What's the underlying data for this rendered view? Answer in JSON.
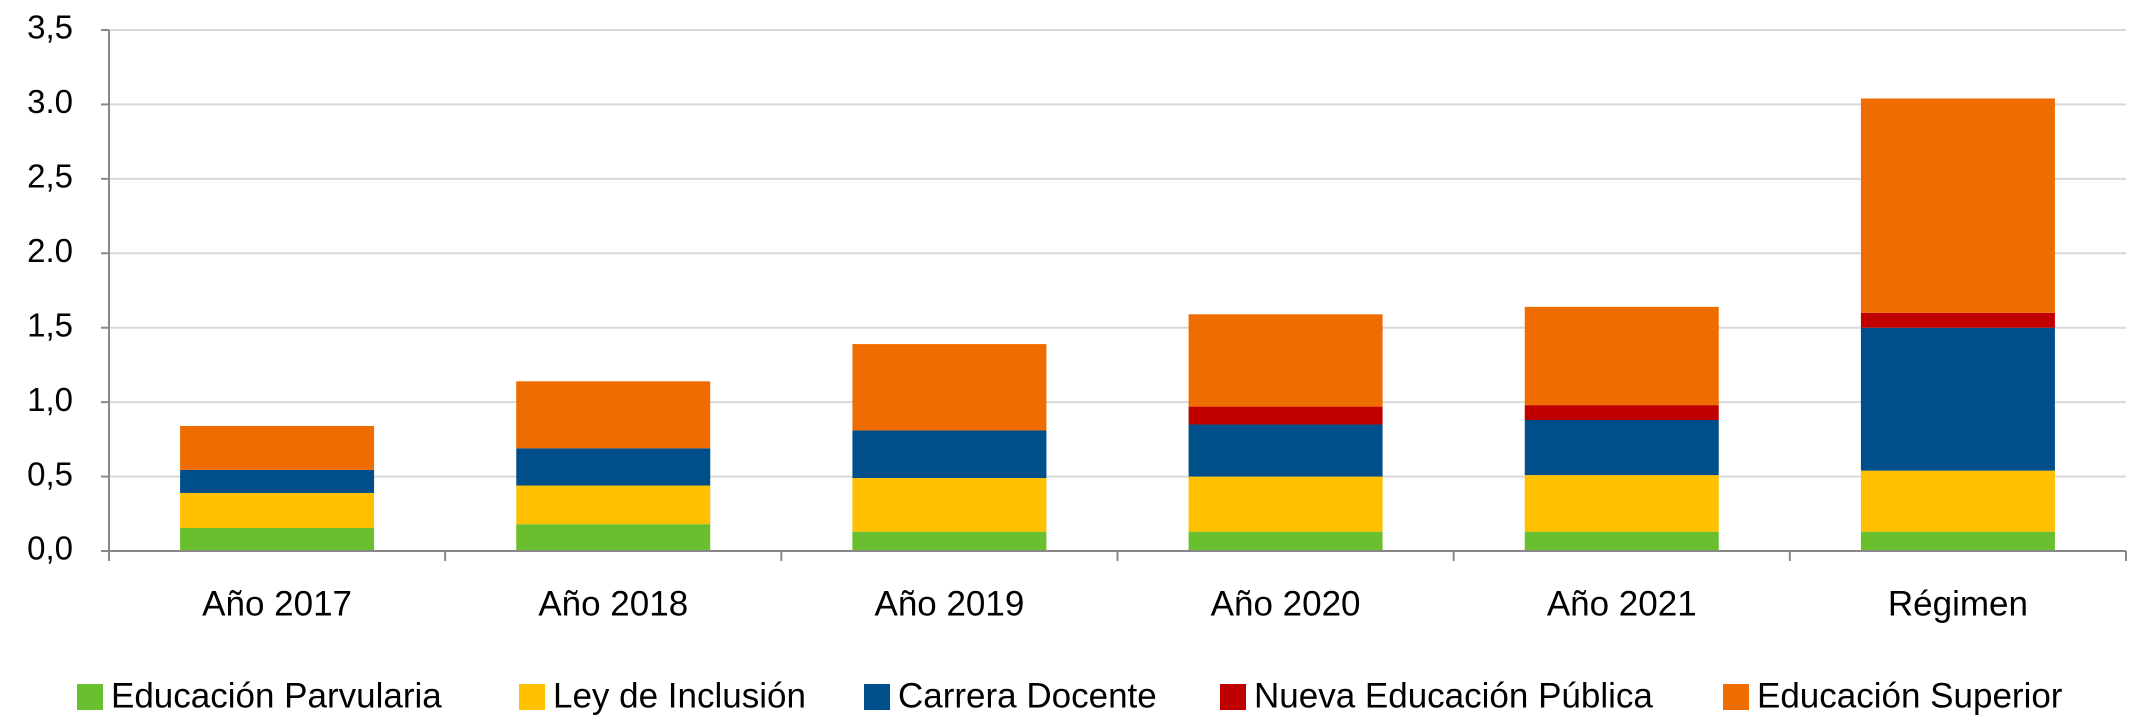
{
  "chart_data": {
    "type": "stacked_bar",
    "categories": [
      "Año 2017",
      "Año 2018",
      "Año 2019",
      "Año 2020",
      "Año 2021",
      "Régimen"
    ],
    "series": [
      {
        "name": "Educación Parvularia",
        "color": "#6abf2e",
        "values": [
          0.155,
          0.18,
          0.13,
          0.13,
          0.13,
          0.13
        ]
      },
      {
        "name": "Ley de Inclusión",
        "color": "#ffc000",
        "values": [
          0.235,
          0.26,
          0.36,
          0.37,
          0.38,
          0.41
        ]
      },
      {
        "name": "Carrera Docente",
        "color": "#004e8a",
        "values": [
          0.155,
          0.25,
          0.32,
          0.35,
          0.37,
          0.96
        ]
      },
      {
        "name": "Nueva Educación Pública",
        "color": "#c00000",
        "values": [
          0,
          0,
          0,
          0.12,
          0.1,
          0.1
        ]
      },
      {
        "name": "Educación Superior",
        "color": "#ef6c00",
        "values": [
          0.295,
          0.45,
          0.58,
          0.62,
          0.66,
          1.44
        ]
      }
    ],
    "ylim": [
      0,
      3.5
    ],
    "yticks": [
      {
        "value": 0,
        "label": "0,0"
      },
      {
        "value": 0.5,
        "label": "0,5"
      },
      {
        "value": 1,
        "label": "1,0"
      },
      {
        "value": 1.5,
        "label": "1,5"
      },
      {
        "value": 2,
        "label": "2.0"
      },
      {
        "value": 2.5,
        "label": "2,5"
      },
      {
        "value": 3,
        "label": "3.0"
      },
      {
        "value": 3.5,
        "label": "3,5"
      }
    ],
    "grid": true,
    "legend": "bottom"
  }
}
